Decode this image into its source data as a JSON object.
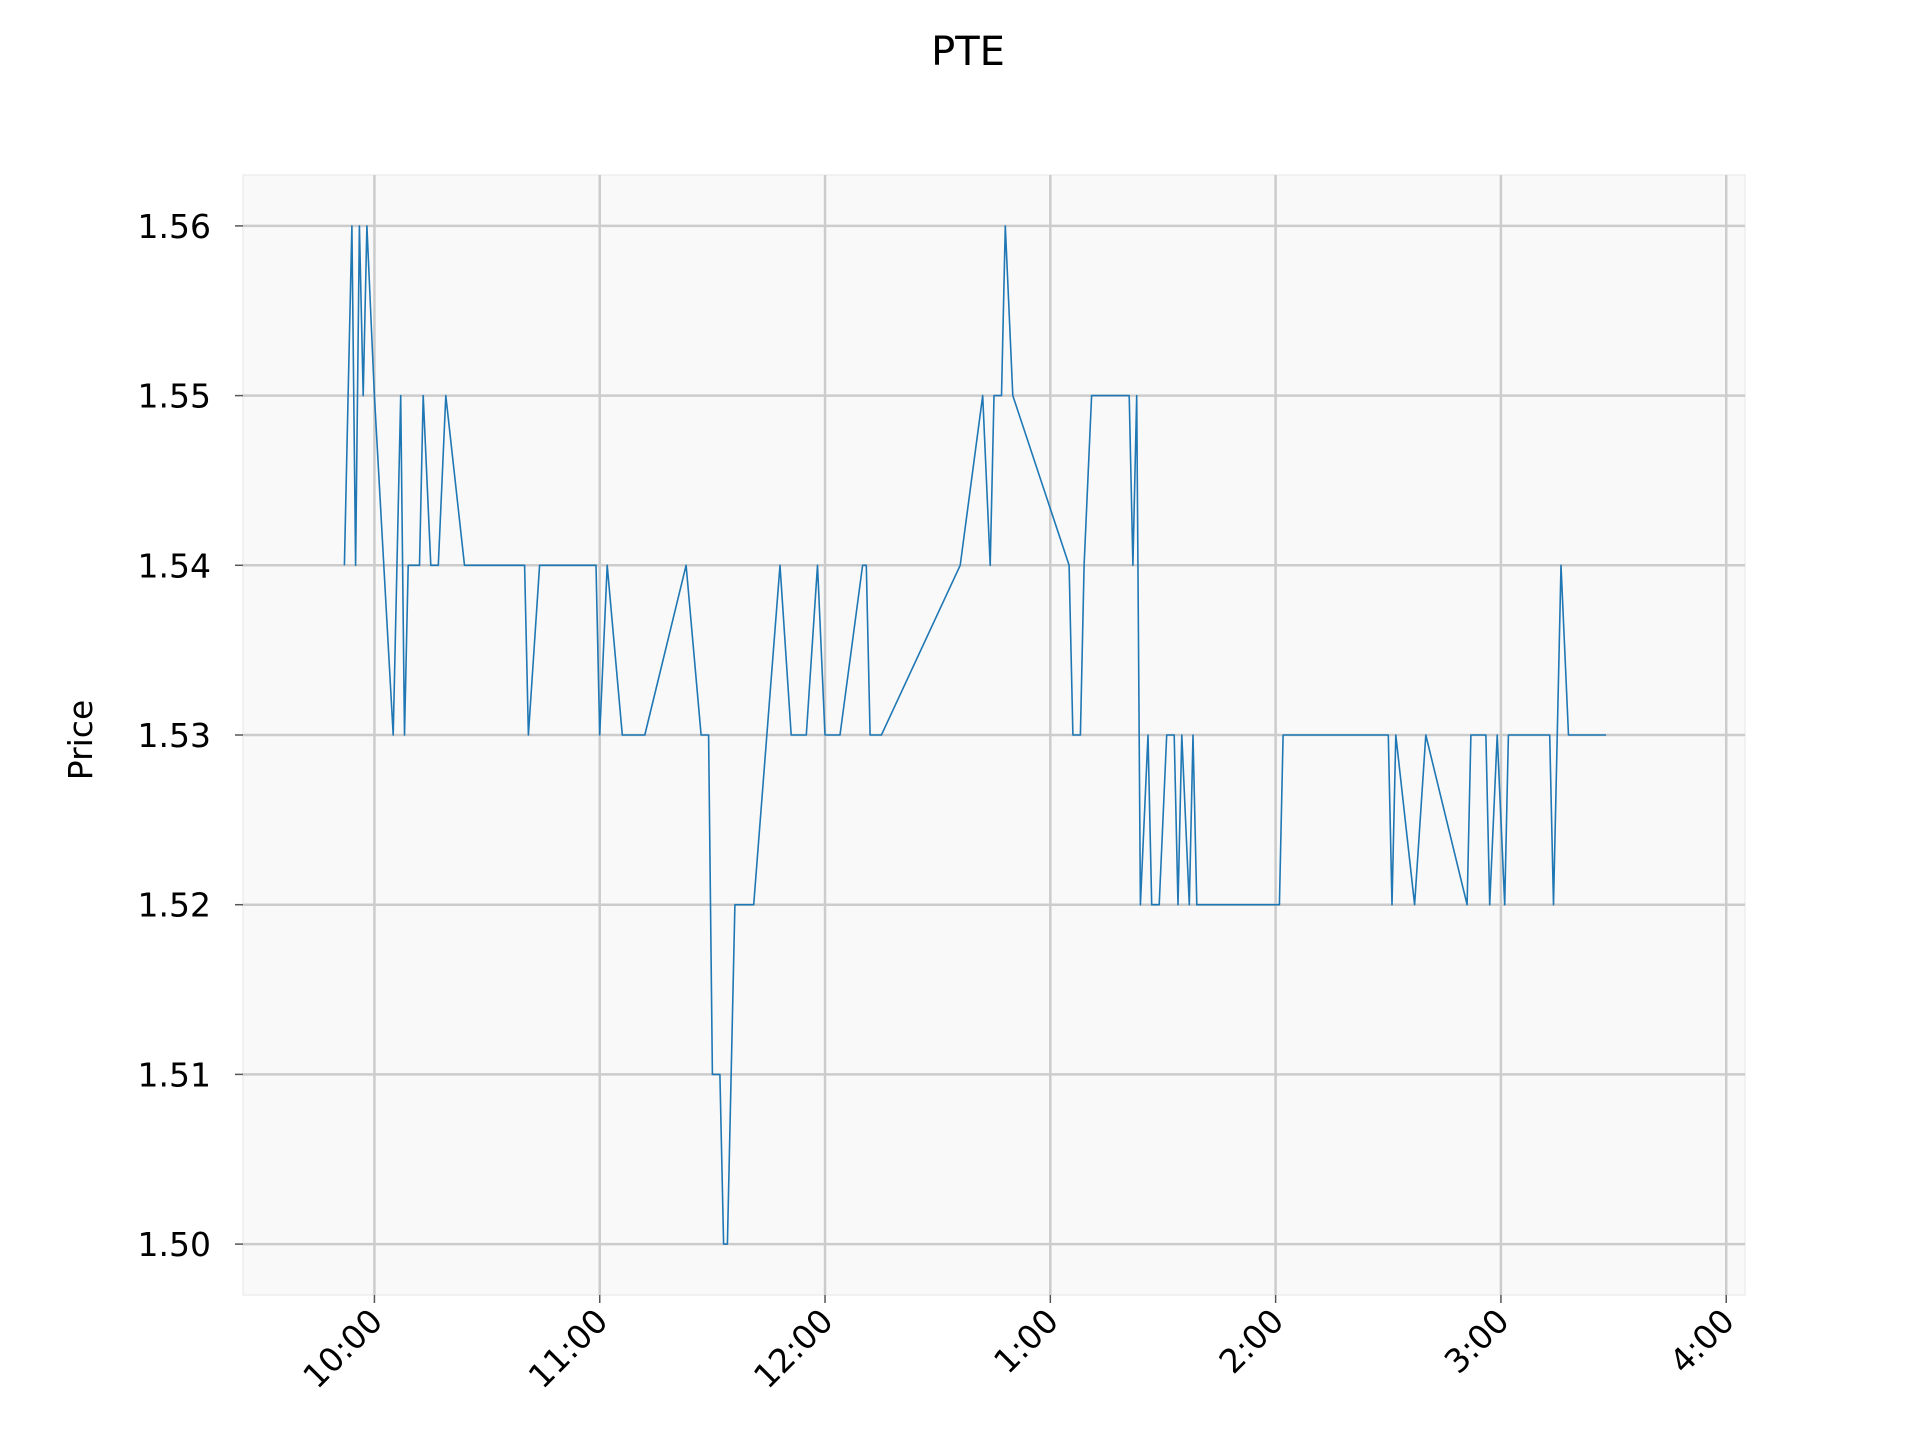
{
  "chart_data": {
    "type": "line",
    "title": "PTE",
    "xlabel": "",
    "ylabel": "Price",
    "grid": true,
    "background": "#f9f9f9",
    "grid_color": "#cccccc",
    "line_color": "#1f77b4",
    "xlim": [
      "9:25",
      "4:05"
    ],
    "ylim": [
      1.497,
      1.563
    ],
    "x_ticks": [
      "10:00",
      "11:00",
      "12:00",
      "1:00",
      "2:00",
      "3:00",
      "4:00"
    ],
    "y_ticks": [
      "1.50",
      "1.51",
      "1.52",
      "1.53",
      "1.54",
      "1.55",
      "1.56"
    ],
    "series": [
      {
        "x": [
          "9:52",
          "9:53",
          "9:54",
          "9:55",
          "9:56",
          "9:57",
          "9:58",
          "10:00",
          "10:05",
          "10:07",
          "10:08",
          "10:09",
          "10:12",
          "10:13",
          "10:15",
          "10:17",
          "10:19",
          "10:24",
          "10:26",
          "10:40",
          "10:41",
          "10:44",
          "10:46",
          "10:59",
          "11:00",
          "11:02",
          "11:06",
          "11:12",
          "11:23",
          "11:27",
          "11:29",
          "11:30",
          "11:32",
          "11:33",
          "11:34",
          "11:36",
          "11:38",
          "11:41",
          "11:48",
          "11:51",
          "11:55",
          "11:58",
          "12:00",
          "12:04",
          "12:10",
          "12:11",
          "12:12",
          "12:15",
          "12:36",
          "12:42",
          "12:44",
          "12:45",
          "12:47",
          "12:48",
          "12:50",
          "13:05",
          "13:06",
          "13:08",
          "13:09",
          "13:11",
          "13:12",
          "13:21",
          "13:22",
          "13:23",
          "13:24",
          "13:26",
          "13:27",
          "13:29",
          "13:31",
          "13:33",
          "13:34",
          "13:35",
          "13:37",
          "13:38",
          "13:39",
          "13:40",
          "14:01",
          "14:02",
          "14:30",
          "14:31",
          "14:32",
          "14:37",
          "14:40",
          "14:51",
          "14:52",
          "14:56",
          "14:57",
          "14:59",
          "15:01",
          "15:02",
          "15:03",
          "15:13",
          "15:14",
          "15:16",
          "15:18",
          "15:28"
        ],
        "values": [
          1.54,
          1.55,
          1.56,
          1.54,
          1.56,
          1.55,
          1.56,
          1.55,
          1.53,
          1.55,
          1.53,
          1.54,
          1.54,
          1.55,
          1.54,
          1.54,
          1.55,
          1.54,
          1.54,
          1.54,
          1.53,
          1.54,
          1.54,
          1.54,
          1.53,
          1.54,
          1.53,
          1.53,
          1.54,
          1.53,
          1.53,
          1.51,
          1.51,
          1.5,
          1.5,
          1.52,
          1.52,
          1.52,
          1.54,
          1.53,
          1.53,
          1.54,
          1.53,
          1.53,
          1.54,
          1.54,
          1.53,
          1.53,
          1.54,
          1.55,
          1.54,
          1.55,
          1.55,
          1.56,
          1.55,
          1.54,
          1.53,
          1.53,
          1.54,
          1.55,
          1.55,
          1.55,
          1.54,
          1.55,
          1.52,
          1.53,
          1.52,
          1.52,
          1.53,
          1.53,
          1.52,
          1.53,
          1.52,
          1.53,
          1.52,
          1.52,
          1.52,
          1.53,
          1.53,
          1.52,
          1.53,
          1.52,
          1.53,
          1.52,
          1.53,
          1.53,
          1.52,
          1.53,
          1.52,
          1.53,
          1.53,
          1.53,
          1.52,
          1.54,
          1.53,
          1.53
        ]
      }
    ]
  }
}
